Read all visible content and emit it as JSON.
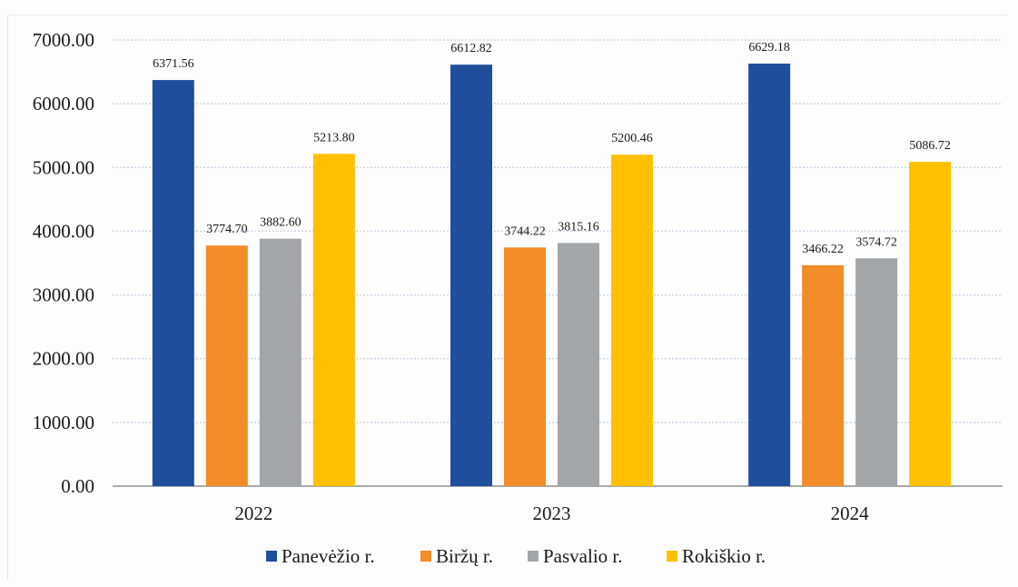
{
  "chart_data": {
    "type": "bar",
    "categories": [
      "2022",
      "2023",
      "2024"
    ],
    "series": [
      {
        "name": "Panevėžio r.",
        "color": "#1f4e9c",
        "values": [
          6371.56,
          6612.82,
          6629.18
        ],
        "labels": [
          "6371.56",
          "6612.82",
          "6629.18"
        ]
      },
      {
        "name": "Biržų r.",
        "color": "#f28c28",
        "values": [
          3774.7,
          3744.22,
          3466.22
        ],
        "labels": [
          "3774.70",
          "3744.22",
          "3466.22"
        ]
      },
      {
        "name": "Pasvalio r.",
        "color": "#a3a6a8",
        "values": [
          3882.6,
          3815.16,
          3574.72
        ],
        "labels": [
          "3882.60",
          "3815.16",
          "3574.72"
        ]
      },
      {
        "name": "Rokiškio r.",
        "color": "#ffc000",
        "values": [
          5213.8,
          5200.46,
          5086.72
        ],
        "labels": [
          "5213.80",
          "5200.46",
          "5086.72"
        ]
      }
    ],
    "yticks": [
      "0.00",
      "1000.00",
      "2000.00",
      "3000.00",
      "4000.00",
      "5000.00",
      "6000.00",
      "7000.00"
    ],
    "ylim": [
      0,
      7000
    ],
    "grid": true,
    "legend_position": "bottom"
  }
}
